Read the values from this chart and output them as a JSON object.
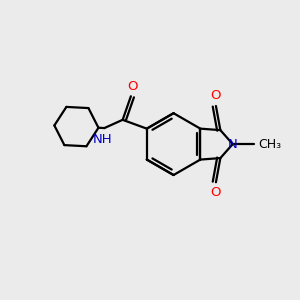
{
  "background_color": "#ebebeb",
  "bond_color": "#000000",
  "nitrogen_color": "#0000cc",
  "oxygen_color": "#ff0000",
  "line_width": 1.6,
  "fig_size": [
    3.0,
    3.0
  ],
  "dpi": 100,
  "xlim": [
    0,
    10
  ],
  "ylim": [
    0,
    10
  ]
}
